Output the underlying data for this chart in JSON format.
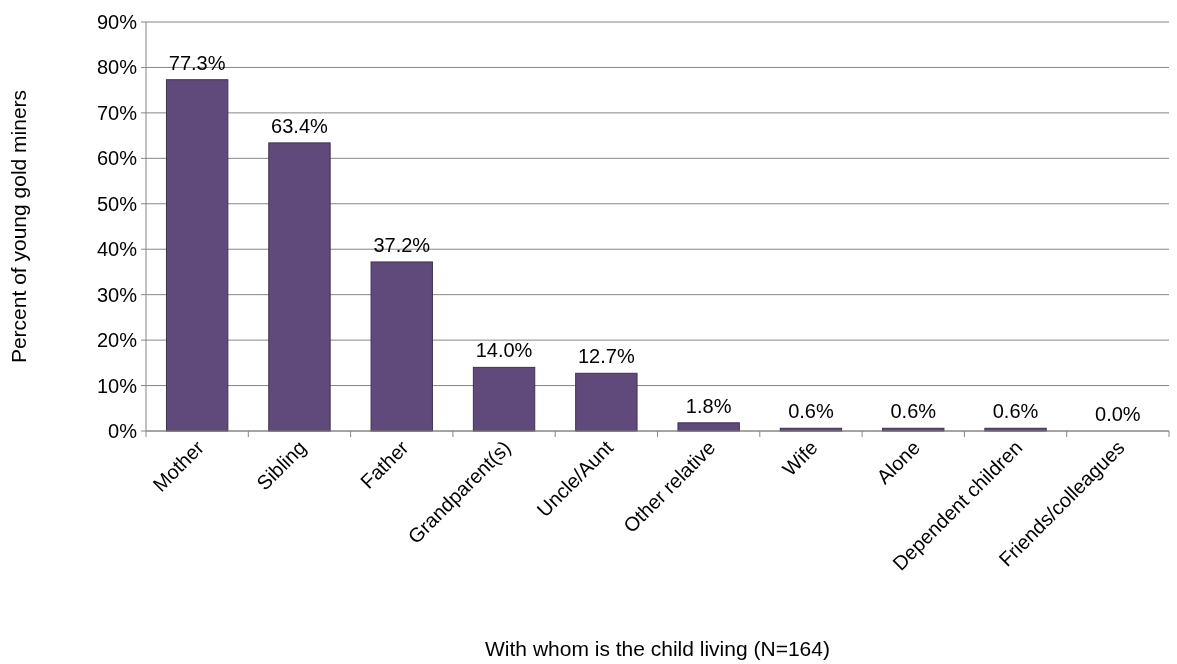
{
  "chart_data": {
    "type": "bar",
    "xlabel": "With whom is the child living (N=164)",
    "ylabel": "Percent of young gold miners",
    "categories": [
      "Mother",
      "Sibling",
      "Father",
      "Grandparent(s)",
      "Uncle/Aunt",
      "Other relative",
      "Wife",
      "Alone",
      "Dependent children",
      "Friends/colleagues"
    ],
    "values": [
      77.3,
      63.4,
      37.2,
      14.0,
      12.7,
      1.8,
      0.6,
      0.6,
      0.6,
      0.0
    ],
    "value_labels": [
      "77.3%",
      "63.4%",
      "37.2%",
      "14.0%",
      "12.7%",
      "1.8%",
      "0.6%",
      "0.6%",
      "0.6%",
      "0.0%"
    ],
    "color": "#604a7b",
    "ylim": [
      0,
      90
    ],
    "yticks": [
      {
        "value": 0,
        "label": "0%"
      },
      {
        "value": 10,
        "label": "10%"
      },
      {
        "value": 20,
        "label": "20%"
      },
      {
        "value": 30,
        "label": "30%"
      },
      {
        "value": 40,
        "label": "40%"
      },
      {
        "value": 50,
        "label": "50%"
      },
      {
        "value": 60,
        "label": "60%"
      },
      {
        "value": 70,
        "label": "70%"
      },
      {
        "value": 80,
        "label": "80%"
      },
      {
        "value": 90,
        "label": "90%"
      }
    ],
    "grid": "y"
  }
}
